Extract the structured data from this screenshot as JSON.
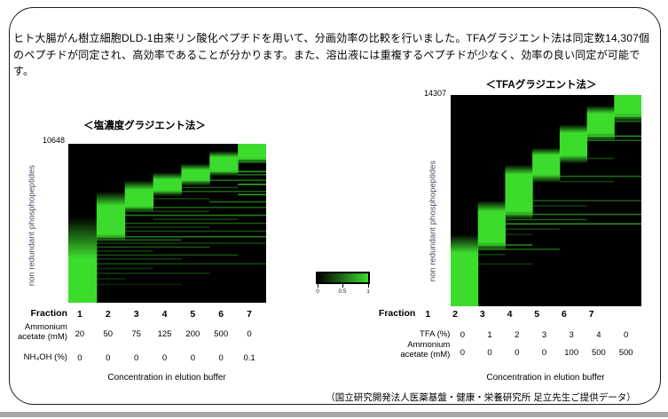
{
  "description": "ヒト大腸がん樹立細胞DLD-1由来リン酸化ペプチドを用いて、分画効率の比較を行いました。TFAグラジエント法は同定数14,307個のペプチドが同定され、高効率であることが分かります。また、溶出液には重複するペプチドが少なく、効率の良い同定が可能です。",
  "footer": "（国立研究開発法人医薬基盤・健康・栄養研究所 足立先生ご提供データ）",
  "colors": {
    "heatmap_green": "#3cdc2d",
    "heatmap_background": "#000000",
    "axis_label_color": "#3f4d63",
    "divider_gray": "#a9a9a9"
  },
  "colorbar": {
    "ticks": [
      "0",
      "0.5",
      "1"
    ],
    "min_color": "#000000",
    "max_color": "#3cdc2d"
  },
  "chart_data": [
    {
      "type": "heatmap",
      "title": "＜塩濃度グラジエント法＞",
      "ylabel": "non redundant phosphopeptides",
      "xlabel": "Concentration in elution buffer",
      "total_identified": 10648,
      "total_label": "10648",
      "value_range": [
        0,
        1
      ],
      "table": [
        {
          "label": "Fraction",
          "values": [
            "1",
            "2",
            "3",
            "4",
            "5",
            "6",
            "7"
          ],
          "bold": true
        },
        {
          "label": "Ammonium\nacetate (mM)",
          "values": [
            "20",
            "50",
            "75",
            "125",
            "200",
            "500",
            "0"
          ]
        },
        {
          "label": "NH₄OH (%)",
          "values": [
            "0",
            "0",
            "0",
            "0",
            "0",
            "0",
            "0.1"
          ]
        }
      ],
      "columns": [
        {
          "bright": [
            0.72,
            1.0
          ],
          "fade": 0.46
        },
        {
          "bright": [
            0.39,
            0.57
          ],
          "fade": 0.3
        },
        {
          "bright": [
            0.29,
            0.39
          ],
          "fade": 0.23
        },
        {
          "bright": [
            0.225,
            0.29
          ],
          "fade": 0.18
        },
        {
          "bright": [
            0.165,
            0.225
          ],
          "fade": 0.125
        },
        {
          "bright": [
            0.085,
            0.165
          ],
          "fade": 0.045
        },
        {
          "bright": [
            0.0,
            0.085
          ],
          "fade": 0.0
        }
      ],
      "lines": [
        {
          "y": 0.095,
          "c": [
            6,
            7
          ],
          "o": 0.85
        },
        {
          "y": 0.115,
          "c": [
            6,
            7
          ],
          "o": 0.45
        },
        {
          "y": 0.175,
          "c": [
            5,
            7
          ],
          "o": 0.7
        },
        {
          "y": 0.195,
          "c": [
            6,
            7
          ],
          "o": 0.5
        },
        {
          "y": 0.23,
          "c": [
            4,
            7
          ],
          "o": 0.5
        },
        {
          "y": 0.255,
          "c": [
            6,
            7
          ],
          "o": 0.8
        },
        {
          "y": 0.275,
          "c": [
            4,
            6
          ],
          "o": 0.35
        },
        {
          "y": 0.3,
          "c": [
            3,
            7
          ],
          "o": 0.45
        },
        {
          "y": 0.32,
          "c": [
            6,
            7
          ],
          "o": 0.7
        },
        {
          "y": 0.345,
          "c": [
            3,
            5
          ],
          "o": 0.3
        },
        {
          "y": 0.365,
          "c": [
            5,
            7
          ],
          "o": 0.5
        },
        {
          "y": 0.4,
          "c": [
            1,
            7
          ],
          "o": 0.45
        },
        {
          "y": 0.425,
          "c": [
            2,
            5
          ],
          "o": 0.3
        },
        {
          "y": 0.45,
          "c": [
            2,
            7
          ],
          "o": 0.55
        },
        {
          "y": 0.475,
          "c": [
            3,
            6
          ],
          "o": 0.3
        },
        {
          "y": 0.5,
          "c": [
            1,
            7
          ],
          "o": 0.4
        },
        {
          "y": 0.525,
          "c": [
            1,
            5
          ],
          "o": 0.3
        },
        {
          "y": 0.55,
          "c": [
            1,
            7
          ],
          "o": 0.35
        },
        {
          "y": 0.585,
          "c": [
            1,
            7
          ],
          "o": 0.55
        },
        {
          "y": 0.605,
          "c": [
            1,
            4
          ],
          "o": 0.45
        },
        {
          "y": 0.625,
          "c": [
            1,
            7
          ],
          "o": 0.3
        },
        {
          "y": 0.65,
          "c": [
            1,
            5
          ],
          "o": 0.4
        },
        {
          "y": 0.675,
          "c": [
            1,
            3
          ],
          "o": 0.28
        },
        {
          "y": 0.7,
          "c": [
            1,
            6
          ],
          "o": 0.35
        },
        {
          "y": 0.725,
          "c": [
            1,
            4
          ],
          "o": 0.28
        },
        {
          "y": 0.755,
          "c": [
            1,
            7
          ],
          "o": 0.32
        },
        {
          "y": 0.785,
          "c": [
            1,
            3
          ],
          "o": 0.22
        },
        {
          "y": 0.815,
          "c": [
            1,
            5
          ],
          "o": 0.26
        },
        {
          "y": 0.85,
          "c": [
            1,
            2
          ],
          "o": 0.22
        },
        {
          "y": 0.885,
          "c": [
            1,
            4
          ],
          "o": 0.18
        }
      ]
    },
    {
      "type": "heatmap",
      "title": "＜TFAグラジエント法＞",
      "ylabel": "non redundant phosphopeptides",
      "xlabel": "Concentration in elution buffer",
      "total_identified": 14307,
      "total_label": "14307",
      "value_range": [
        0,
        1
      ],
      "table": [
        {
          "label": "Fraction",
          "values": [
            "1",
            "2",
            "3",
            "4",
            "5",
            "6",
            "7"
          ],
          "bold": true,
          "shift_left": true
        },
        {
          "label": "TFA (%)",
          "values": [
            "0",
            "1",
            "2",
            "3",
            "3",
            "4",
            "0"
          ]
        },
        {
          "label": "Ammonium\nacetate (mM)",
          "values": [
            "0",
            "0",
            "0",
            "0",
            "100",
            "500",
            "500"
          ]
        }
      ],
      "columns": [
        {
          "bright": [
            0.747,
            1.0
          ],
          "fade": 0.66
        },
        {
          "bright": [
            0.551,
            0.698
          ],
          "fade": 0.5
        },
        {
          "bright": [
            0.376,
            0.55
          ],
          "fade": 0.33
        },
        {
          "bright": [
            0.285,
            0.376
          ],
          "fade": 0.25
        },
        {
          "bright": [
            0.18,
            0.285
          ],
          "fade": 0.14
        },
        {
          "bright": [
            0.088,
            0.18
          ],
          "fade": 0.05
        },
        {
          "bright": [
            0.0,
            0.088
          ],
          "fade": 0.0
        }
      ],
      "lines": [
        {
          "y": 0.1,
          "c": [
            6,
            7
          ],
          "o": 0.75
        },
        {
          "y": 0.125,
          "c": [
            6,
            7
          ],
          "o": 0.45
        },
        {
          "y": 0.195,
          "c": [
            5,
            7
          ],
          "o": 0.65
        },
        {
          "y": 0.215,
          "c": [
            5,
            7
          ],
          "o": 0.45
        },
        {
          "y": 0.3,
          "c": [
            5,
            6
          ],
          "o": 0.3
        },
        {
          "y": 0.385,
          "c": [
            4,
            7
          ],
          "o": 0.5
        },
        {
          "y": 0.41,
          "c": [
            4,
            6
          ],
          "o": 0.3
        },
        {
          "y": 0.5,
          "c": [
            3,
            7
          ],
          "o": 0.4
        },
        {
          "y": 0.525,
          "c": [
            3,
            5
          ],
          "o": 0.28
        },
        {
          "y": 0.565,
          "c": [
            2,
            7
          ],
          "o": 0.55
        },
        {
          "y": 0.59,
          "c": [
            2,
            5
          ],
          "o": 0.4
        },
        {
          "y": 0.61,
          "c": [
            2,
            7
          ],
          "o": 0.65
        },
        {
          "y": 0.635,
          "c": [
            2,
            4
          ],
          "o": 0.3
        },
        {
          "y": 0.66,
          "c": [
            2,
            3
          ],
          "o": 0.22
        },
        {
          "y": 0.71,
          "c": [
            1,
            3
          ],
          "o": 0.6
        },
        {
          "y": 0.73,
          "c": [
            1,
            4
          ],
          "o": 0.45
        },
        {
          "y": 0.755,
          "c": [
            1,
            2
          ],
          "o": 0.3
        },
        {
          "y": 0.8,
          "c": [
            1,
            3
          ],
          "o": 0.25
        }
      ]
    }
  ]
}
